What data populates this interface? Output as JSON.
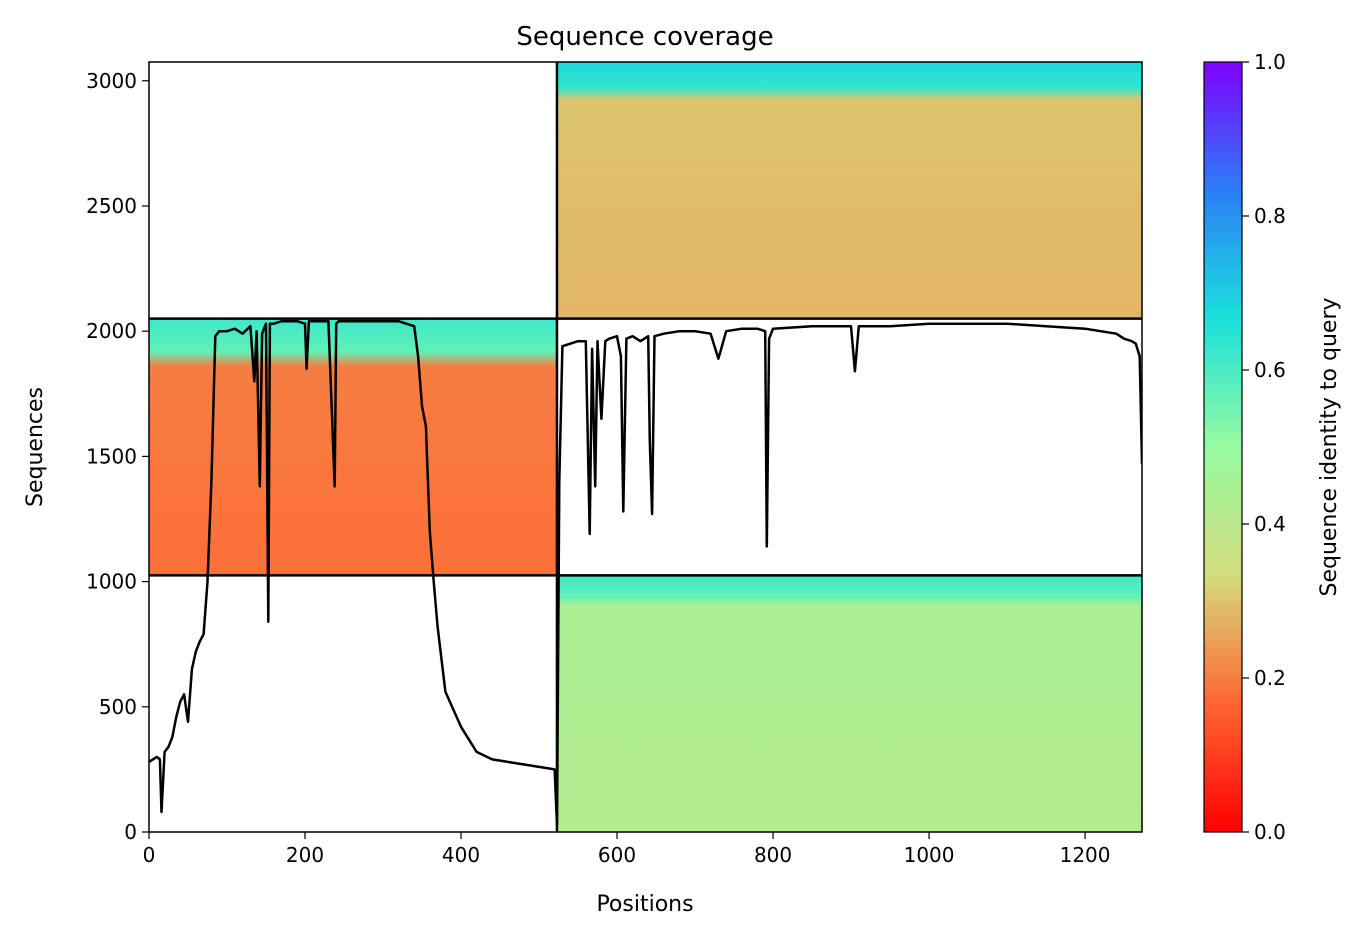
{
  "chart_data": {
    "type": "heatmap",
    "title": "Sequence coverage",
    "xlabel": "Positions",
    "ylabel": "Sequences",
    "xlim": [
      0,
      1273
    ],
    "ylim": [
      0,
      3075
    ],
    "xticks": [
      "0",
      "200",
      "400",
      "600",
      "800",
      "1000",
      "1200"
    ],
    "yticks": [
      "0",
      "500",
      "1000",
      "1500",
      "2000",
      "2500",
      "3000"
    ],
    "grid": false,
    "colorbar": {
      "label": "Sequence identity to query",
      "range": [
        0,
        1
      ],
      "ticks": [
        "0.0",
        "0.2",
        "0.4",
        "0.6",
        "0.8",
        "1.0"
      ],
      "colormap": "rainbow_r",
      "stops": [
        "#ff0000",
        "#ff6633",
        "#d4dc7e",
        "#96fba0",
        "#1ae0db",
        "#2c7ef6",
        "#8000ff"
      ]
    },
    "chain_boundaries_x": [
      523
    ],
    "block_boundaries_y": [
      1025,
      2050
    ],
    "blocks": [
      {
        "x": [
          523,
          1273
        ],
        "y": [
          0,
          1025
        ],
        "identity_low": 0.42,
        "identity_high": 0.62,
        "high_identity_rows": 120
      },
      {
        "x": [
          0,
          523
        ],
        "y": [
          1025,
          2050
        ],
        "identity_low": 0.18,
        "identity_high": 0.62,
        "high_identity_rows": 190
      },
      {
        "x": [
          523,
          1273
        ],
        "y": [
          2050,
          3075
        ],
        "identity_low": 0.28,
        "identity_high": 0.68,
        "high_identity_rows": 150
      }
    ],
    "coverage": {
      "x": [
        0,
        10,
        14,
        16,
        20,
        25,
        30,
        35,
        40,
        45,
        50,
        55,
        60,
        65,
        70,
        75,
        80,
        85,
        90,
        100,
        110,
        120,
        130,
        135,
        138,
        142,
        145,
        150,
        153,
        155,
        160,
        170,
        180,
        190,
        200,
        202,
        205,
        210,
        220,
        230,
        238,
        240,
        243,
        250,
        260,
        270,
        280,
        300,
        320,
        340,
        345,
        350,
        355,
        360,
        365,
        370,
        380,
        400,
        420,
        440,
        460,
        480,
        500,
        520,
        523,
        526,
        530,
        540,
        550,
        560,
        565,
        568,
        572,
        575,
        580,
        585,
        590,
        600,
        605,
        608,
        612,
        620,
        630,
        640,
        642,
        645,
        648,
        660,
        680,
        700,
        720,
        730,
        740,
        760,
        780,
        790,
        792,
        795,
        800,
        850,
        900,
        905,
        910,
        950,
        1000,
        1050,
        1100,
        1150,
        1200,
        1240,
        1250,
        1260,
        1265,
        1270,
        1273
      ],
      "y": [
        280,
        300,
        290,
        80,
        320,
        340,
        380,
        460,
        520,
        550,
        440,
        650,
        720,
        760,
        790,
        1000,
        1400,
        1980,
        2000,
        2000,
        2010,
        1990,
        2020,
        1800,
        2000,
        1380,
        1990,
        2030,
        840,
        2030,
        2030,
        2040,
        2040,
        2040,
        2030,
        1850,
        2040,
        2040,
        2040,
        2040,
        1380,
        2030,
        2040,
        2040,
        2040,
        2040,
        2040,
        2040,
        2040,
        2020,
        1900,
        1700,
        1620,
        1200,
        1000,
        820,
        560,
        420,
        320,
        290,
        280,
        270,
        260,
        250,
        30,
        1400,
        1940,
        1950,
        1960,
        1960,
        1190,
        1930,
        1380,
        1960,
        1650,
        1960,
        1970,
        1980,
        1900,
        1280,
        1970,
        1980,
        1960,
        1980,
        1560,
        1270,
        1980,
        1990,
        2000,
        2000,
        1990,
        1890,
        2000,
        2010,
        2010,
        2000,
        1140,
        1970,
        2010,
        2020,
        2020,
        1840,
        2020,
        2020,
        2030,
        2030,
        2030,
        2020,
        2010,
        1990,
        1970,
        1960,
        1950,
        1900,
        1470
      ]
    }
  }
}
